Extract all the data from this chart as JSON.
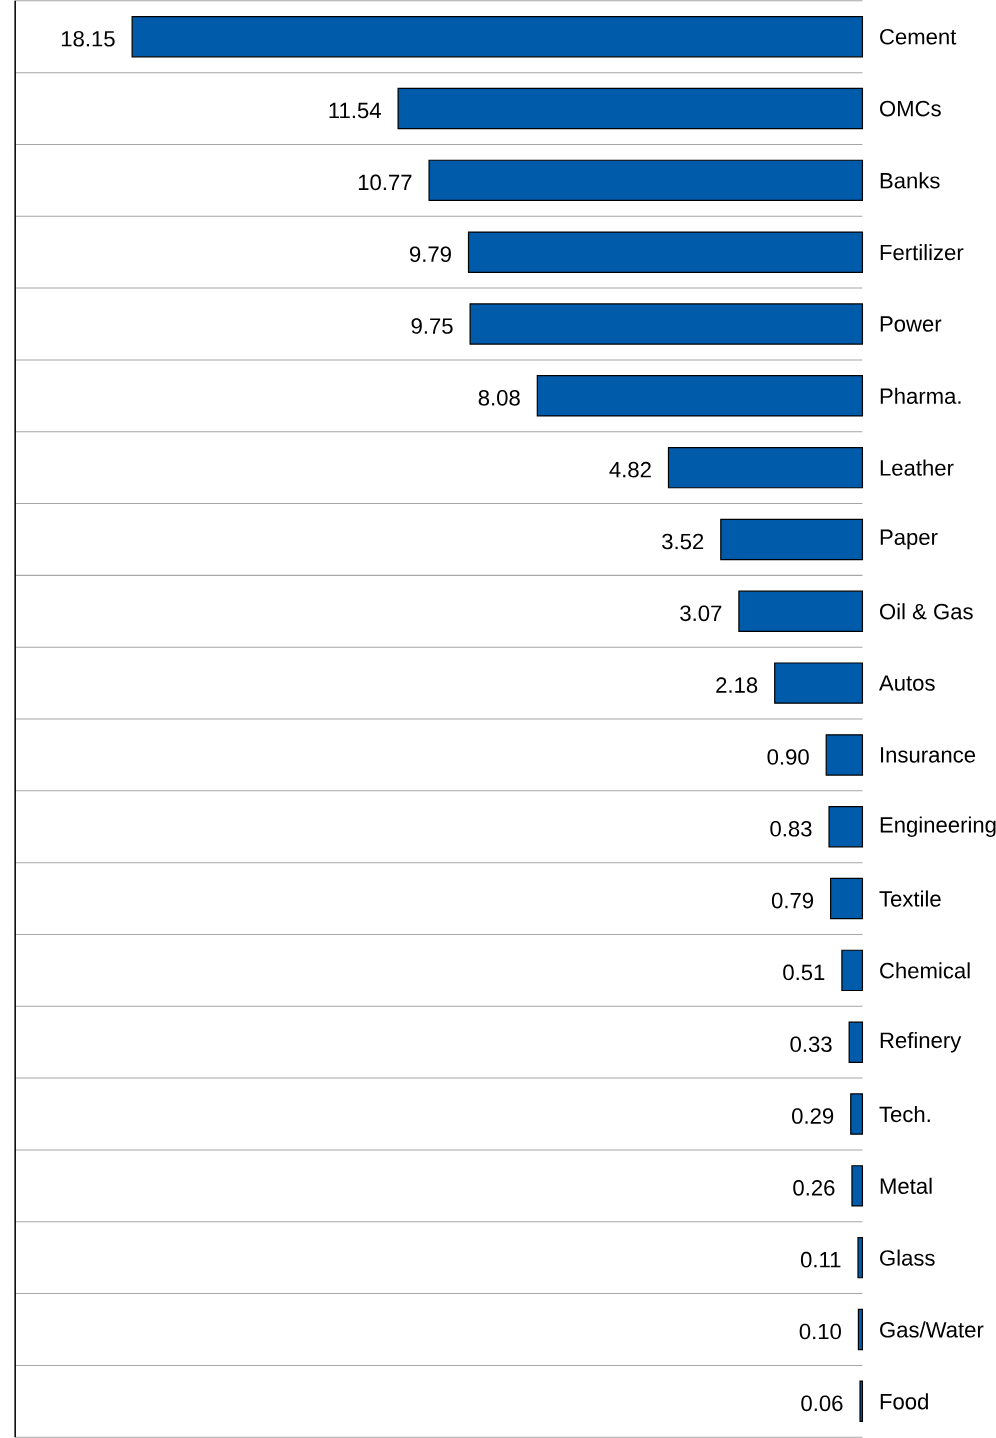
{
  "chart_data": {
    "type": "bar",
    "orientation": "horizontal",
    "categories": [
      "Cement",
      "OMCs",
      "Banks",
      "Fertilizer",
      "Power",
      "Pharma.",
      "Leather",
      "Paper",
      "Oil & Gas",
      "Autos",
      "Insurance",
      "Engineering",
      "Textile",
      "Chemical",
      "Refinery",
      "Tech.",
      "Metal",
      "Glass",
      "Gas/Water",
      "Food"
    ],
    "values": [
      18.15,
      11.54,
      10.77,
      9.79,
      9.75,
      8.08,
      4.82,
      3.52,
      3.07,
      2.18,
      0.9,
      0.83,
      0.79,
      0.51,
      0.33,
      0.29,
      0.26,
      0.11,
      0.1,
      0.06
    ],
    "value_labels": [
      "18.15",
      "11.54",
      "10.77",
      "9.79",
      "9.75",
      "8.08",
      "4.82",
      "3.52",
      "3.07",
      "2.18",
      "0.90",
      "0.83",
      "0.79",
      "0.51",
      "0.33",
      "0.29",
      "0.26",
      "0.11",
      "0.10",
      "0.06"
    ],
    "color": "#005baa",
    "grid": true
  }
}
